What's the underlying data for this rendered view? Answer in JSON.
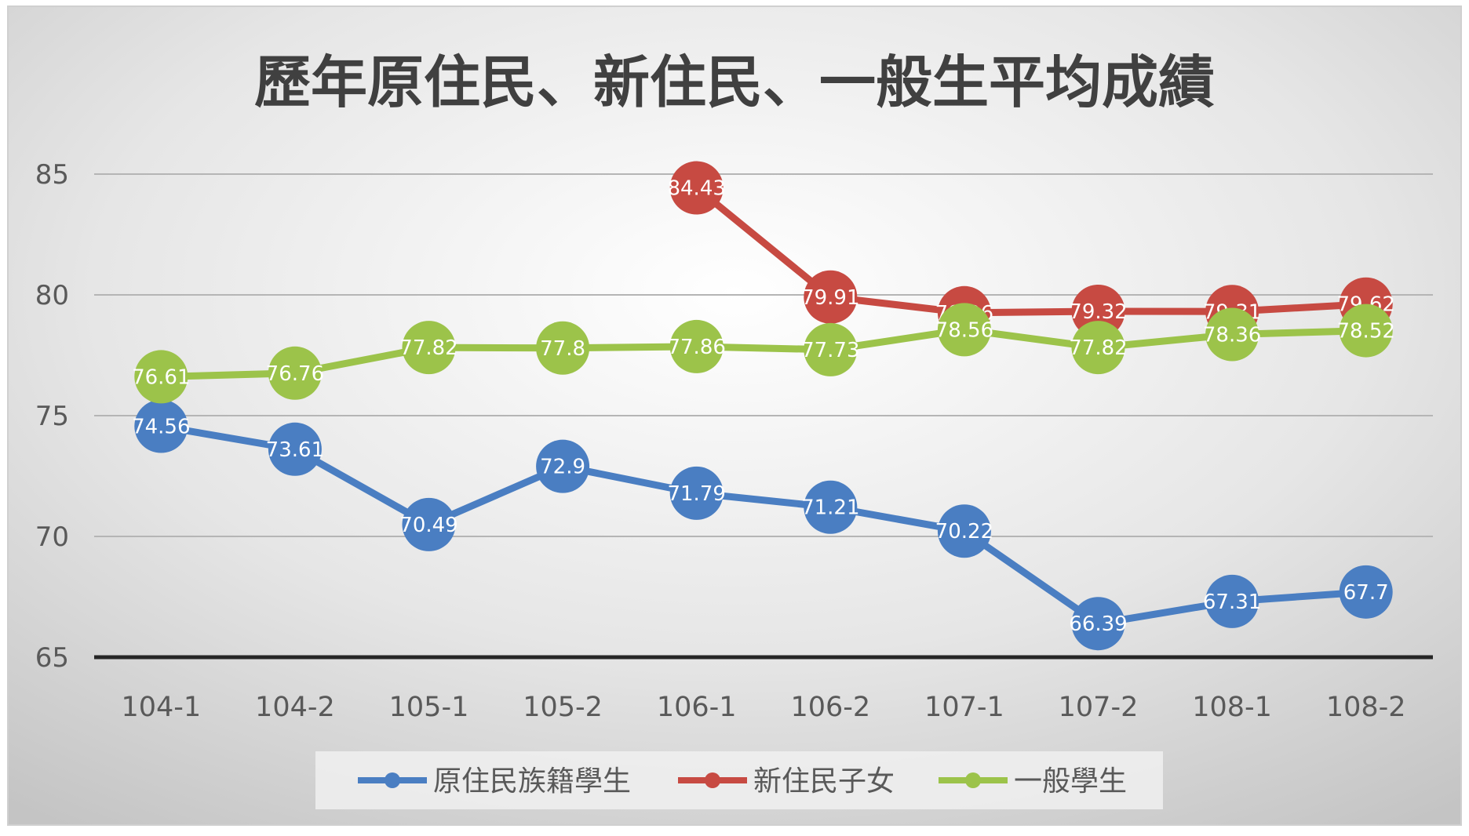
{
  "chart_data": {
    "type": "line",
    "title": "歷年原住民、新住民、一般生平均成績",
    "xlabel": "",
    "ylabel": "",
    "ylim": [
      65,
      85
    ],
    "yticks": [
      65,
      70,
      75,
      80,
      85
    ],
    "grid": true,
    "legend_position": "bottom",
    "categories": [
      "104-1",
      "104-2",
      "105-1",
      "105-2",
      "106-1",
      "106-2",
      "107-1",
      "107-2",
      "108-1",
      "108-2"
    ],
    "series": [
      {
        "name": "原住民族籍學生",
        "color": "#4A7EC2",
        "values": [
          74.56,
          73.61,
          70.49,
          72.9,
          71.79,
          71.21,
          70.22,
          66.39,
          67.31,
          67.7
        ],
        "labels": [
          "74.56",
          "73.61",
          "70.49",
          "72.9",
          "71.79",
          "71.21",
          "70.22",
          "66.39",
          "67.31",
          "67.7"
        ]
      },
      {
        "name": "新住民子女",
        "color": "#C74A42",
        "values": [
          null,
          null,
          null,
          null,
          84.43,
          79.91,
          79.26,
          79.32,
          79.31,
          79.62
        ],
        "labels": [
          null,
          null,
          null,
          null,
          "84.43",
          "79.91",
          "79.26",
          "79.32",
          "79.31",
          "79.62"
        ]
      },
      {
        "name": "一般學生",
        "color": "#9CC34A",
        "values": [
          76.61,
          76.76,
          77.82,
          77.8,
          77.86,
          77.73,
          78.56,
          77.82,
          78.36,
          78.52
        ],
        "labels": [
          "76.61",
          "76.76",
          "77.82",
          "77.8",
          "77.86",
          "77.73",
          "78.56",
          "77.82",
          "78.36",
          "78.52"
        ]
      }
    ]
  }
}
